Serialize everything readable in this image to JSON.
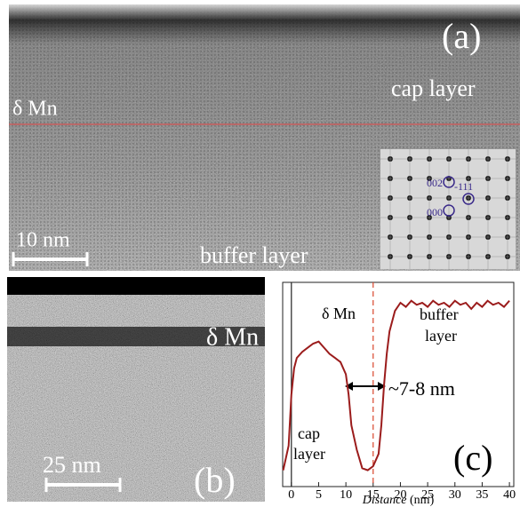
{
  "panels": {
    "a": {
      "label": "(a)",
      "cap_layer": "cap layer",
      "delta_mn": "δ Mn",
      "scale_bar": "10 nm",
      "buffer_layer": "buffer layer",
      "inset_spots": [
        "002",
        "-111",
        "000"
      ]
    },
    "b": {
      "label": "(b)",
      "delta_mn": "δ Mn",
      "scale_bar": "25 nm"
    }
  },
  "chart_data": {
    "type": "line",
    "x": [
      -1.5,
      -0.5,
      0,
      0.5,
      1,
      2,
      3,
      4,
      5,
      6,
      7,
      8,
      9,
      10,
      10.5,
      11,
      12,
      13,
      14,
      15,
      16,
      16.5,
      17,
      17.5,
      18,
      19,
      20,
      21,
      22,
      23,
      24,
      25,
      26,
      27,
      28,
      29,
      30,
      31,
      32,
      33,
      34,
      35,
      36,
      37,
      38,
      39,
      40
    ],
    "series": [
      {
        "color": "#9b1c1c",
        "values": [
          8,
          20,
          45,
          58,
          63,
          66,
          68,
          70,
          71,
          68,
          65,
          63,
          61,
          55,
          45,
          30,
          18,
          9,
          8,
          10,
          16,
          30,
          50,
          65,
          76,
          86,
          90,
          88,
          91,
          89,
          90,
          88,
          91,
          89,
          90,
          88,
          91,
          89,
          90,
          87,
          90,
          88,
          91,
          89,
          90,
          88,
          91
        ]
      }
    ],
    "xlim": [
      -1.6,
      40.8
    ],
    "ylim": [
      0,
      100
    ],
    "xticks": [
      0,
      5,
      10,
      15,
      20,
      25,
      30,
      35,
      40
    ],
    "x_label_italic": "Distance",
    "x_label_unit": "(nm)",
    "vlines": [
      {
        "x": 0,
        "color": "#222222",
        "dashed": false
      },
      {
        "x": 15,
        "color": "#d9452b",
        "dashed": true
      }
    ],
    "delta_mn": "δ Mn",
    "buffer_layer": [
      "buffer",
      "layer"
    ],
    "cap_layer": [
      "cap",
      "layer"
    ],
    "width_label": "~7-8 nm",
    "panel_label": "(c)"
  }
}
